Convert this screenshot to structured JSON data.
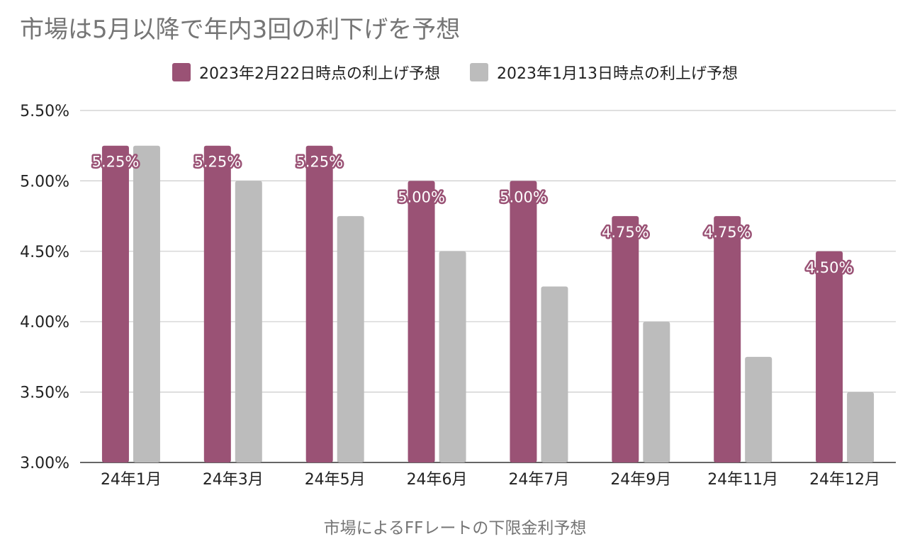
{
  "chart_data": {
    "type": "bar",
    "title": "市場は5月以降で年内3回の利下げを予想",
    "xlabel": "市場によるFFレートの下限金利予想",
    "ylabel": "",
    "categories": [
      "24年1月",
      "24年3月",
      "24年5月",
      "24年6月",
      "24年7月",
      "24年9月",
      "24年11月",
      "24年12月"
    ],
    "series": [
      {
        "name": "2023年2月22日時点の利上げ予想",
        "color": "#9a5275",
        "values": [
          5.25,
          5.25,
          5.25,
          5.0,
          5.0,
          4.75,
          4.75,
          4.5
        ],
        "labels": [
          "5.25%",
          "5.25%",
          "5.25%",
          "5.00%",
          "5.00%",
          "4.75%",
          "4.75%",
          "4.50%"
        ]
      },
      {
        "name": "2023年1月13日時点の利上げ予想",
        "color": "#bcbcbc",
        "values": [
          5.25,
          5.0,
          4.75,
          4.5,
          4.25,
          4.0,
          3.75,
          3.5
        ]
      }
    ],
    "ylim": [
      3.0,
      5.5
    ],
    "yticks": [
      "3.00%",
      "3.50%",
      "4.00%",
      "4.50%",
      "5.00%",
      "5.50%"
    ],
    "grid": true,
    "legend": "top-center"
  }
}
